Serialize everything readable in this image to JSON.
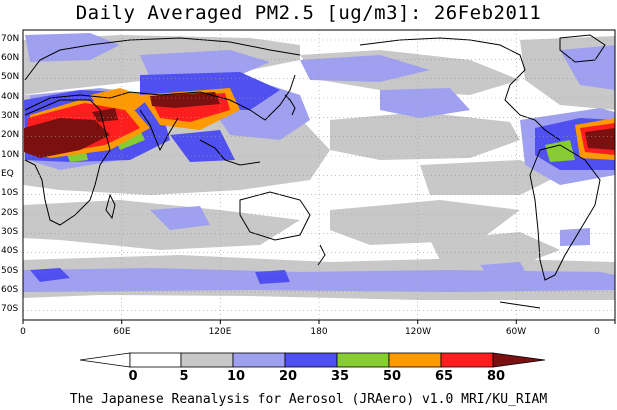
{
  "title": "Daily Averaged PM2.5 [ug/m3]: 26Feb2011",
  "footer": "The Japanese Reanalysis for Aerosol (JRAero) v1.0 MRI/KU_RIAM",
  "map": {
    "projection": "equirectangular",
    "lon_range": [
      0,
      360
    ],
    "lat_range": [
      -75,
      75
    ],
    "grid": "dotted",
    "lat_labels": [
      "70N",
      "60N",
      "50N",
      "40N",
      "30N",
      "20N",
      "10N",
      "EQ",
      "10S",
      "20S",
      "30S",
      "40S",
      "50S",
      "60S",
      "70S"
    ],
    "lon_labels": [
      "0",
      "60E",
      "120E",
      "180",
      "120W",
      "60W",
      "0"
    ]
  },
  "colorbar": {
    "levels": [
      "0",
      "5",
      "10",
      "20",
      "35",
      "50",
      "65",
      "80"
    ],
    "colors": [
      "#ffffff",
      "#c8c8c8",
      "#a0a0f0",
      "#5050f0",
      "#88cc33",
      "#ff9900",
      "#ff1e1e",
      "#7a1010"
    ]
  }
}
